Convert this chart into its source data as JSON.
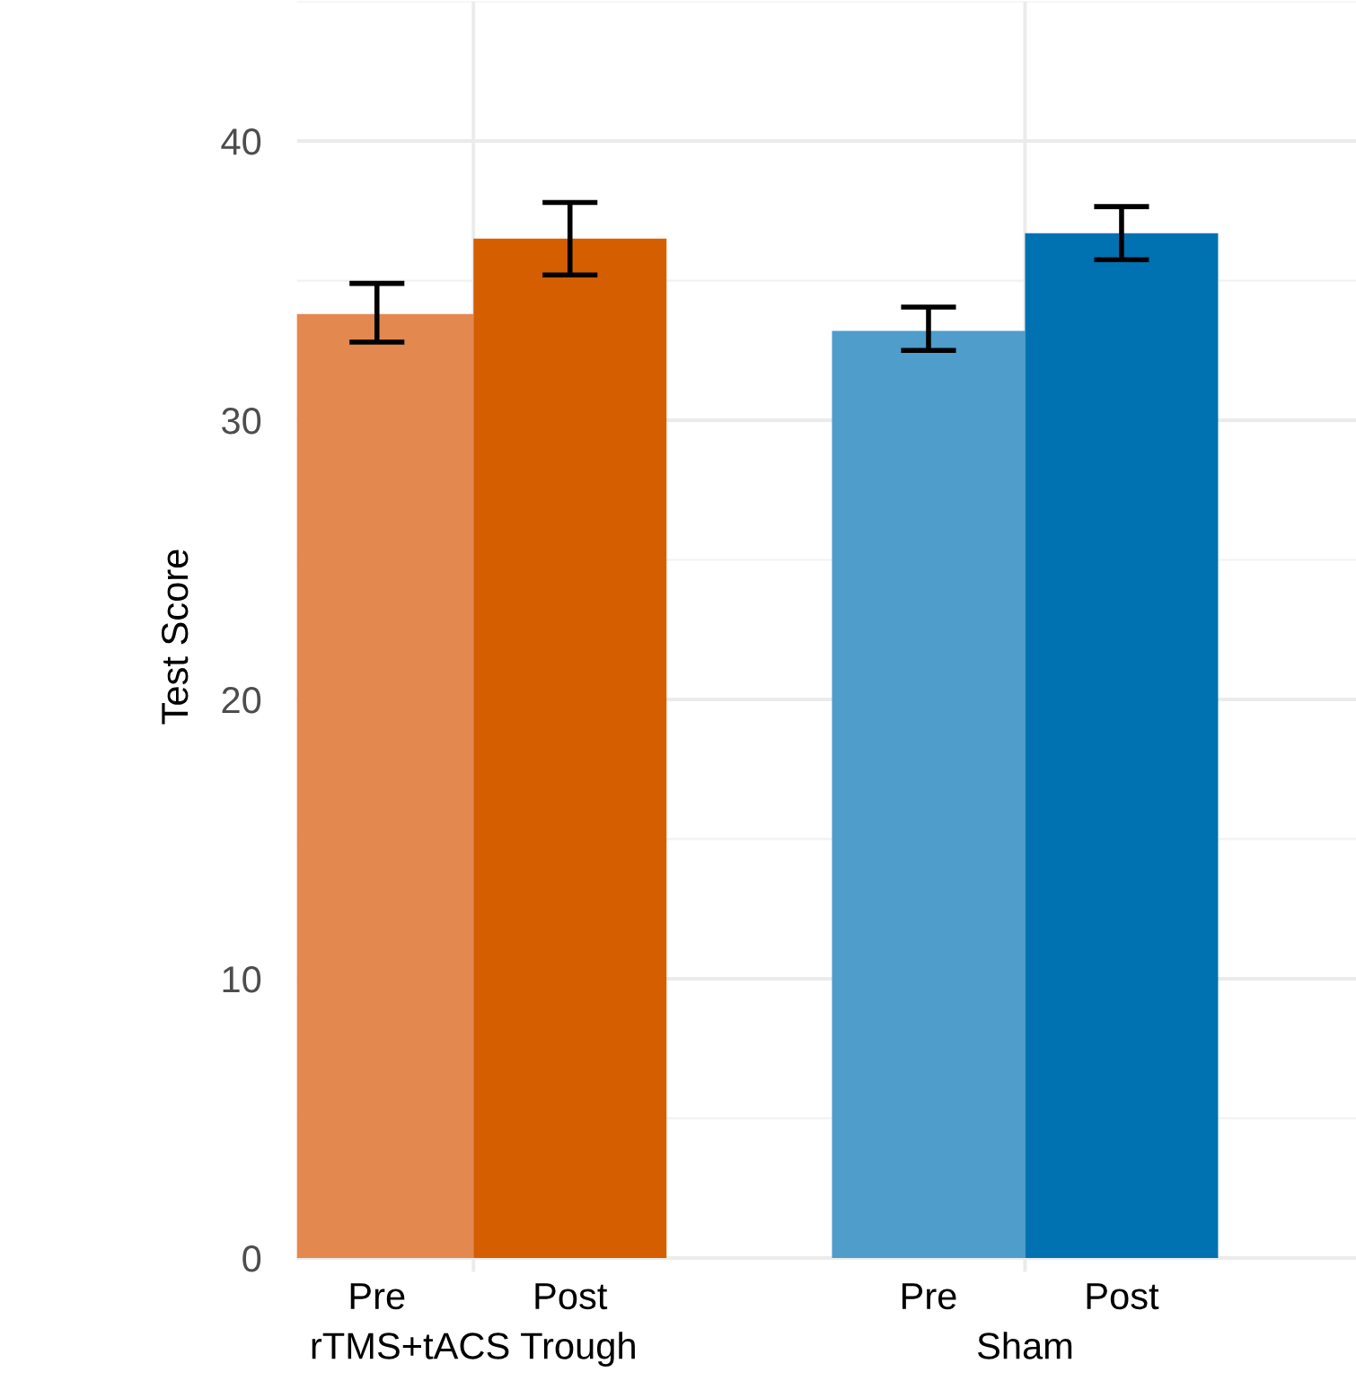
{
  "chart_data": {
    "type": "bar",
    "ylabel": "Test Score",
    "categories": [
      "rTMS+tACS Trough",
      "Sham"
    ],
    "series": [
      {
        "name": "Pre",
        "colors": [
          "#e3884f",
          "#4f9dcb"
        ],
        "values": [
          33.8,
          33.2
        ],
        "errors": [
          [
            32.8,
            34.9
          ],
          [
            32.5,
            34.05
          ]
        ]
      },
      {
        "name": "Post",
        "colors": [
          "#d55e00",
          "#0072b2"
        ],
        "values": [
          36.5,
          36.7
        ],
        "errors": [
          [
            35.2,
            37.8
          ],
          [
            35.75,
            37.65
          ]
        ]
      }
    ],
    "ylim": [
      -0.5,
      45
    ],
    "yticks": [
      0,
      10,
      20,
      30,
      40
    ],
    "grid": true,
    "legend": false
  }
}
